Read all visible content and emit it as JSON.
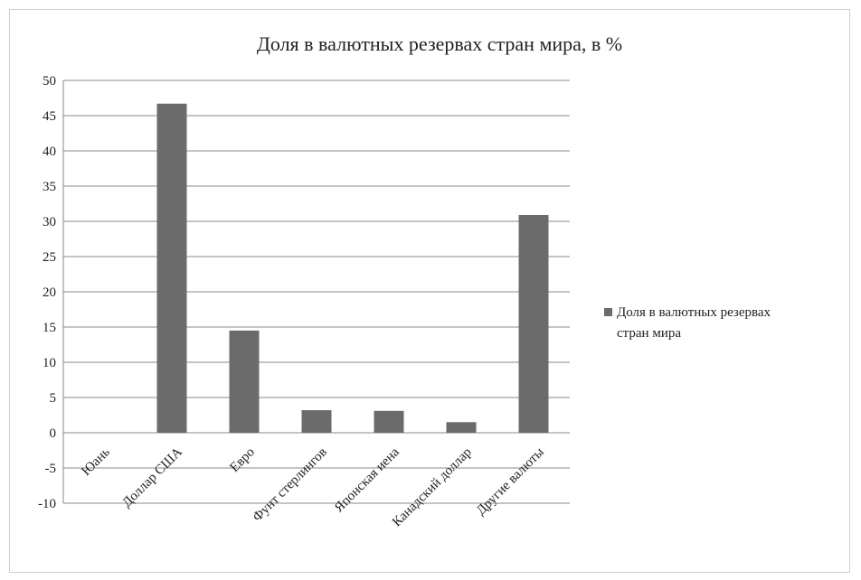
{
  "chart_data": {
    "type": "bar",
    "title": "Доля в валютных резервах стран мира, в %",
    "categories": [
      "Юань",
      "Доллар США",
      "Евро",
      "Фунт стерлингов",
      "Японская иена",
      "Канадский доллар",
      "Другие валюты"
    ],
    "series": [
      {
        "name": "Доля в валютных резервах стран мира",
        "values": [
          0,
          46.7,
          14.5,
          3.2,
          3.1,
          1.5,
          30.9
        ],
        "color": "#6b6b6b"
      }
    ],
    "ylim": [
      -10,
      50
    ],
    "yticks": [
      50,
      45,
      40,
      35,
      30,
      25,
      20,
      15,
      10,
      5,
      0,
      -5,
      -10
    ],
    "grid": true,
    "legend": "right"
  },
  "legend": {
    "line1": "Доля в валютных резервах",
    "line2": "стран мира"
  }
}
